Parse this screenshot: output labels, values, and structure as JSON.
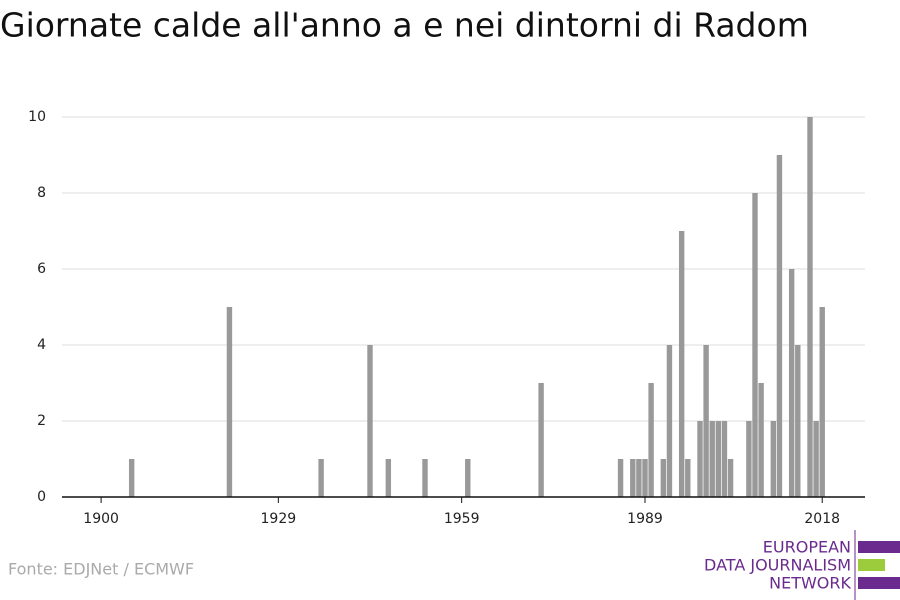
{
  "chart_data": {
    "type": "bar",
    "title": "Giornate calde all'anno a e nei dintorni di Radom",
    "source": "Fonte: EDJNet / ECMWF",
    "logo": [
      "EUROPEAN",
      "DATA JOURNALISM",
      "NETWORK"
    ],
    "x": [
      1905,
      1921,
      1936,
      1944,
      1947,
      1953,
      1960,
      1972,
      1985,
      1987,
      1988,
      1989,
      1990,
      1992,
      1993,
      1995,
      1996,
      1998,
      1999,
      2000,
      2001,
      2002,
      2003,
      2006,
      2007,
      2008,
      2010,
      2011,
      2013,
      2014,
      2016,
      2017,
      2018
    ],
    "values": [
      1,
      5,
      1,
      4,
      1,
      1,
      1,
      3,
      1,
      1,
      1,
      1,
      3,
      1,
      4,
      7,
      1,
      2,
      4,
      2,
      2,
      2,
      1,
      2,
      8,
      3,
      2,
      9,
      6,
      4,
      10,
      2,
      5
    ],
    "color": "#999999",
    "xlim": [
      1893.6,
      2025
    ],
    "xticks": [
      1900,
      1929,
      1959,
      1989,
      2018
    ],
    "ylim": [
      0,
      10
    ],
    "yticks": [
      0,
      2,
      4,
      6,
      8,
      10
    ],
    "grid": true
  }
}
